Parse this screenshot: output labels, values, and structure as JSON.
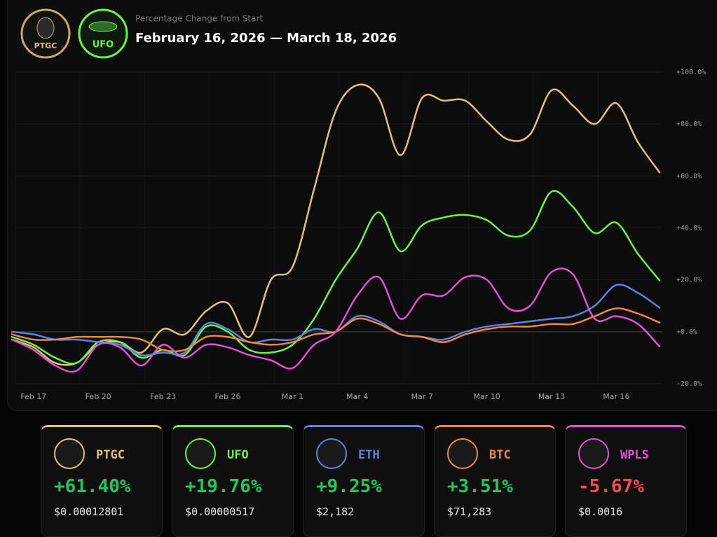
{
  "logos": [
    "PTGC",
    "UFO"
  ],
  "chart_data": {
    "type": "line",
    "subtitle": "Percentage Change from Start",
    "title": "February 16, 2026 — March 18, 2026",
    "categories": [
      null,
      "Feb 17",
      null,
      null,
      "Feb 20",
      null,
      null,
      "Feb 23",
      null,
      null,
      "Feb 26",
      null,
      null,
      "Mar 1",
      null,
      null,
      "Mar 4",
      null,
      null,
      "Mar 7",
      null,
      null,
      "Mar 10",
      null,
      null,
      "Mar 13",
      null,
      null,
      "Mar 16",
      null,
      null
    ],
    "ylim": [
      -20,
      100
    ],
    "yticks": [
      {
        "value": -20,
        "label": "-20.0%"
      },
      {
        "value": 0,
        "label": "+0.0%"
      },
      {
        "value": 20,
        "label": "+20.0%"
      },
      {
        "value": 40,
        "label": "+40.0%"
      },
      {
        "value": 60,
        "label": "+60.0%"
      },
      {
        "value": 80,
        "label": "+80.0%"
      },
      {
        "value": 100,
        "label": "+100.0%"
      }
    ],
    "grid": true,
    "series": [
      {
        "name": "PTGC",
        "color": "#e3c373",
        "values": [
          -3,
          -6,
          -12,
          -12,
          -5,
          -4,
          -8,
          1,
          -1,
          8,
          11,
          -2,
          20,
          25,
          55,
          85,
          95,
          90,
          68,
          90,
          89,
          89,
          81,
          74,
          76,
          93,
          87,
          80,
          88,
          73,
          61.4
        ]
      },
      {
        "name": "UFO",
        "color": "#6ef542",
        "values": [
          -2,
          -5,
          -10,
          -12,
          -4,
          -4,
          -10,
          -7,
          -9,
          2,
          0,
          -7,
          -8,
          -5,
          5,
          20,
          32,
          46,
          31,
          41,
          44,
          45,
          43,
          37,
          39,
          54,
          48,
          38,
          42,
          30,
          19.76
        ]
      },
      {
        "name": "ETH",
        "color": "#5b83e0",
        "values": [
          0,
          -1,
          -3,
          -3,
          -4,
          -5,
          -9,
          -8,
          -8,
          3,
          1,
          -4,
          -3,
          -3,
          1,
          0,
          6,
          4,
          -1,
          -2,
          -3,
          0,
          2,
          3,
          4,
          5,
          6,
          10,
          18,
          15,
          9.25
        ]
      },
      {
        "name": "BTC",
        "color": "#f0883e",
        "values": [
          -1,
          -3,
          -3,
          -2,
          -2,
          -2,
          -3,
          -7,
          -7,
          -2,
          -2,
          -4,
          -5,
          -4,
          -1,
          0,
          5,
          3,
          -1,
          -2,
          -4,
          -1,
          1,
          2,
          2,
          3,
          3,
          6,
          9,
          7,
          3.51
        ]
      },
      {
        "name": "WPLS",
        "color": "#e052d6",
        "values": [
          -3,
          -7,
          -13,
          -15,
          -5,
          -6,
          -13,
          -5,
          -10,
          -5,
          -6,
          -9,
          -11,
          -14,
          -5,
          0,
          14,
          21,
          5,
          14,
          14,
          21,
          20,
          9,
          10,
          23,
          22,
          5,
          6,
          3,
          -5.67
        ]
      }
    ]
  },
  "cards": [
    {
      "name": "PTGC",
      "change": "+61.40%",
      "price": "$0.00012801"
    },
    {
      "name": "UFO",
      "change": "+19.76%",
      "price": "$0.00000517"
    },
    {
      "name": "ETH",
      "change": "+9.25%",
      "price": "$2,182"
    },
    {
      "name": "BTC",
      "change": "+3.51%",
      "price": "$71,283"
    },
    {
      "name": "WPLS",
      "change": "-5.67%",
      "price": "$0.0016"
    }
  ]
}
